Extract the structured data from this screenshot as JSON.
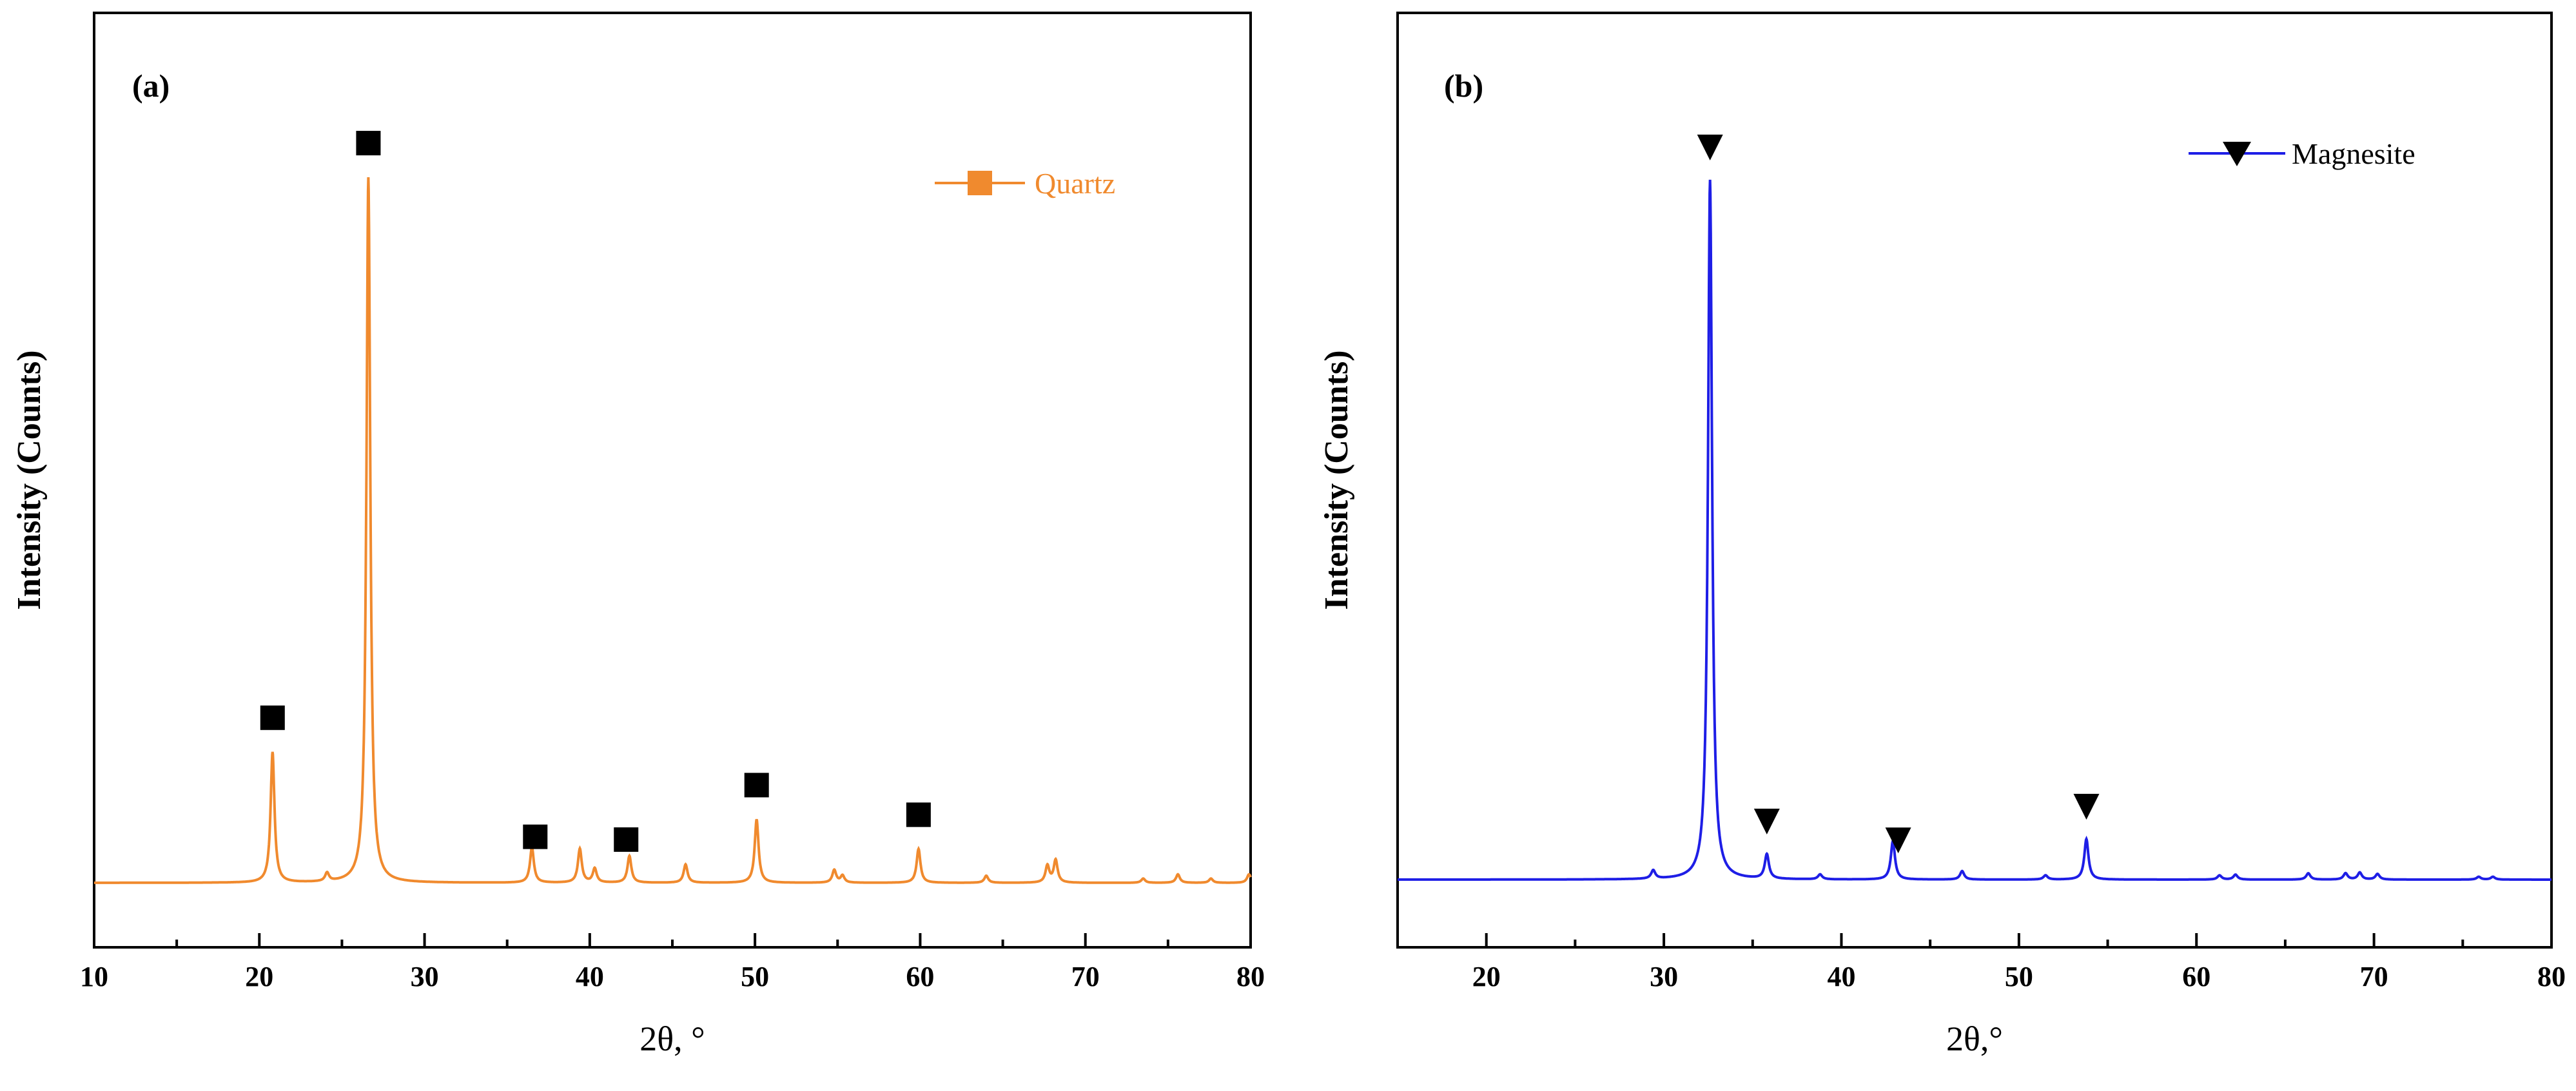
{
  "chart_data": [
    {
      "type": "line",
      "panel_label": "(a)",
      "title": "",
      "xlabel": "2θ, °",
      "ylabel": "Intensity (Counts)",
      "xlim": [
        10,
        80
      ],
      "ylim": [
        0,
        105
      ],
      "x_ticks": [
        10,
        20,
        30,
        40,
        50,
        60,
        70,
        80
      ],
      "y_ticks": [],
      "grid": false,
      "legend_position": "top-right",
      "series": [
        {
          "name": "Quartz",
          "color": "#F08A2E",
          "marker": "square",
          "baseline": 5,
          "peaks": [
            {
              "x": 20.8,
              "height": 18.5
            },
            {
              "x": 24.1,
              "height": 1.2
            },
            {
              "x": 26.6,
              "height": 100
            },
            {
              "x": 36.5,
              "height": 5.0
            },
            {
              "x": 39.4,
              "height": 4.8
            },
            {
              "x": 40.3,
              "height": 2.0
            },
            {
              "x": 42.4,
              "height": 3.8
            },
            {
              "x": 45.8,
              "height": 2.6
            },
            {
              "x": 50.1,
              "height": 9.0
            },
            {
              "x": 54.8,
              "height": 1.8
            },
            {
              "x": 55.3,
              "height": 1.0
            },
            {
              "x": 59.9,
              "height": 4.8
            },
            {
              "x": 64.0,
              "height": 1.0
            },
            {
              "x": 67.7,
              "height": 2.4
            },
            {
              "x": 68.2,
              "height": 3.2
            },
            {
              "x": 73.5,
              "height": 0.6
            },
            {
              "x": 75.6,
              "height": 1.2
            },
            {
              "x": 77.6,
              "height": 0.6
            },
            {
              "x": 79.9,
              "height": 1.2
            }
          ]
        }
      ],
      "phase_markers": [
        20.8,
        26.6,
        36.7,
        42.2,
        50.1,
        59.9
      ]
    },
    {
      "type": "line",
      "panel_label": "(b)",
      "title": "",
      "xlabel": "2θ,°",
      "ylabel": "Intensity (Counts)",
      "xlim": [
        15,
        80
      ],
      "ylim": [
        0,
        105
      ],
      "x_ticks": [
        20,
        30,
        40,
        50,
        60,
        70,
        80
      ],
      "y_ticks": [],
      "grid": false,
      "legend_position": "top-right",
      "series": [
        {
          "name": "Magnesite",
          "color": "#1E1EE6",
          "marker": "triangle-down",
          "baseline": 7,
          "peaks": [
            {
              "x": 29.4,
              "height": 1.2
            },
            {
              "x": 32.6,
              "height": 100
            },
            {
              "x": 35.8,
              "height": 3.5
            },
            {
              "x": 38.8,
              "height": 0.7
            },
            {
              "x": 42.9,
              "height": 5.5
            },
            {
              "x": 46.8,
              "height": 1.2
            },
            {
              "x": 51.5,
              "height": 0.6
            },
            {
              "x": 53.8,
              "height": 5.8
            },
            {
              "x": 61.3,
              "height": 0.6
            },
            {
              "x": 62.2,
              "height": 0.7
            },
            {
              "x": 66.3,
              "height": 0.9
            },
            {
              "x": 68.4,
              "height": 0.9
            },
            {
              "x": 69.2,
              "height": 1.0
            },
            {
              "x": 70.2,
              "height": 0.8
            },
            {
              "x": 75.9,
              "height": 0.4
            },
            {
              "x": 76.7,
              "height": 0.4
            }
          ]
        }
      ],
      "phase_markers": [
        32.6,
        35.8,
        43.2,
        53.8
      ]
    }
  ]
}
